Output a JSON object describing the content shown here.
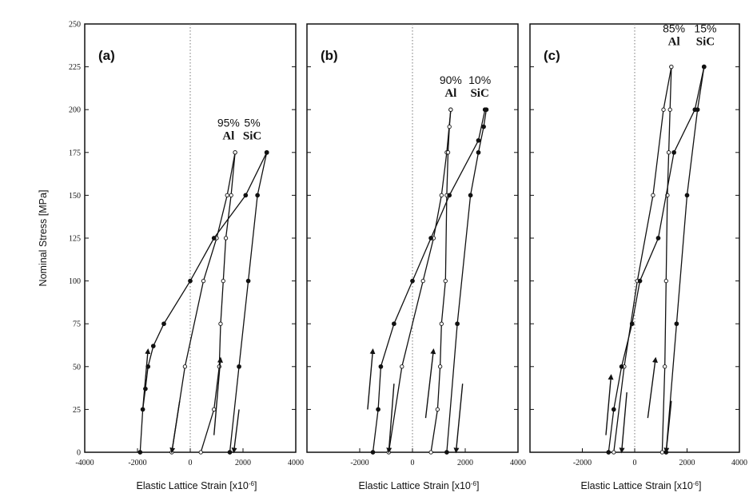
{
  "figure": {
    "y_axis_label": "Nominal Stress [MPa]",
    "x_axis_label": "Elastic Lattice Strain [x10",
    "x_axis_label_exp": "-6",
    "x_axis_label_end": "]"
  },
  "chart_data": [
    {
      "type": "line",
      "panel_label": "(a)",
      "xlabel": "Elastic Lattice Strain [x10-6]",
      "ylabel": "Nominal Stress [MPa]",
      "xlim": [
        -4000,
        4000
      ],
      "ylim": [
        0,
        250
      ],
      "xticks": [
        -4000,
        -2000,
        0,
        2000,
        4000
      ],
      "yticks": [
        0,
        25,
        50,
        75,
        100,
        125,
        150,
        175,
        200,
        225,
        250
      ],
      "vertical_reference_line_x": 0,
      "grid": false,
      "annotations": [
        {
          "label_top": "95%",
          "label_bottom": "Al",
          "x": 1450,
          "y": 190
        },
        {
          "label_top": "5%",
          "label_bottom": "SiC",
          "x": 2350,
          "y": 190
        }
      ],
      "series": [
        {
          "phase": "Al",
          "curve": "loading",
          "points": [
            [
              -700,
              0
            ],
            [
              -200,
              50
            ],
            [
              500,
              100
            ],
            [
              1000,
              125
            ],
            [
              1400,
              150
            ],
            [
              1700,
              175
            ]
          ]
        },
        {
          "phase": "Al",
          "curve": "unloading",
          "points": [
            [
              1700,
              175
            ],
            [
              1550,
              150
            ],
            [
              1350,
              125
            ],
            [
              1250,
              100
            ],
            [
              1150,
              75
            ],
            [
              1100,
              50
            ],
            [
              900,
              25
            ],
            [
              400,
              0
            ]
          ]
        },
        {
          "phase": "SiC",
          "curve": "loading",
          "points": [
            [
              -1900,
              0
            ],
            [
              -1800,
              25
            ],
            [
              -1700,
              37
            ],
            [
              -1600,
              50
            ],
            [
              -1400,
              62
            ],
            [
              -1000,
              75
            ],
            [
              0,
              100
            ],
            [
              900,
              125
            ],
            [
              2100,
              150
            ],
            [
              2900,
              175
            ]
          ]
        },
        {
          "phase": "SiC",
          "curve": "unloading",
          "points": [
            [
              2900,
              175
            ],
            [
              2550,
              150
            ],
            [
              2200,
              100
            ],
            [
              1850,
              50
            ],
            [
              1500,
              0
            ]
          ]
        }
      ],
      "arrows": [
        {
          "from": [
            -1800,
            25
          ],
          "to": [
            -1600,
            60
          ]
        },
        {
          "from": [
            -400,
            30
          ],
          "to": [
            -700,
            0
          ]
        },
        {
          "from": [
            900,
            10
          ],
          "to": [
            1150,
            55
          ]
        },
        {
          "from": [
            1850,
            25
          ],
          "to": [
            1650,
            0
          ]
        }
      ]
    },
    {
      "type": "line",
      "panel_label": "(b)",
      "xlabel": "Elastic Lattice Strain [x10-6]",
      "ylabel": "Nominal Stress [MPa]",
      "xlim": [
        -4000,
        4000
      ],
      "ylim": [
        0,
        250
      ],
      "xticks": [
        -4000,
        -2000,
        0,
        2000,
        4000
      ],
      "yticks": [
        0,
        25,
        50,
        75,
        100,
        125,
        150,
        175,
        200,
        225,
        250
      ],
      "vertical_reference_line_x": 0,
      "grid": false,
      "annotations": [
        {
          "label_top": "90%",
          "label_bottom": "Al",
          "x": 1450,
          "y": 215
        },
        {
          "label_top": "10%",
          "label_bottom": "SiC",
          "x": 2550,
          "y": 215
        }
      ],
      "series": [
        {
          "phase": "Al",
          "curve": "loading",
          "points": [
            [
              -900,
              0
            ],
            [
              -400,
              50
            ],
            [
              400,
              100
            ],
            [
              800,
              125
            ],
            [
              1100,
              150
            ],
            [
              1300,
              175
            ],
            [
              1450,
              200
            ]
          ]
        },
        {
          "phase": "Al",
          "curve": "unloading",
          "points": [
            [
              1450,
              200
            ],
            [
              1400,
              190
            ],
            [
              1350,
              175
            ],
            [
              1300,
              150
            ],
            [
              1250,
              100
            ],
            [
              1100,
              75
            ],
            [
              1050,
              50
            ],
            [
              950,
              25
            ],
            [
              700,
              0
            ]
          ]
        },
        {
          "phase": "SiC",
          "curve": "loading",
          "points": [
            [
              -1500,
              0
            ],
            [
              -1300,
              25
            ],
            [
              -1200,
              50
            ],
            [
              -700,
              75
            ],
            [
              0,
              100
            ],
            [
              700,
              125
            ],
            [
              1400,
              150
            ],
            [
              2500,
              182
            ],
            [
              2750,
              200
            ]
          ]
        },
        {
          "phase": "SiC",
          "curve": "unloading",
          "points": [
            [
              2800,
              200
            ],
            [
              2700,
              190
            ],
            [
              2500,
              175
            ],
            [
              2200,
              150
            ],
            [
              1700,
              75
            ],
            [
              1300,
              0
            ]
          ]
        }
      ],
      "arrows": [
        {
          "from": [
            -1700,
            25
          ],
          "to": [
            -1500,
            60
          ]
        },
        {
          "from": [
            -700,
            40
          ],
          "to": [
            -900,
            0
          ]
        },
        {
          "from": [
            500,
            20
          ],
          "to": [
            800,
            60
          ]
        },
        {
          "from": [
            1900,
            40
          ],
          "to": [
            1650,
            0
          ]
        }
      ]
    },
    {
      "type": "line",
      "panel_label": "(c)",
      "xlabel": "Elastic Lattice Strain [x10-6]",
      "ylabel": "Nominal Stress [MPa]",
      "xlim": [
        -4000,
        4000
      ],
      "ylim": [
        0,
        250
      ],
      "xticks": [
        -4000,
        -2000,
        0,
        2000,
        4000
      ],
      "yticks": [
        0,
        25,
        50,
        75,
        100,
        125,
        150,
        175,
        200,
        225,
        250
      ],
      "vertical_reference_line_x": 0,
      "grid": false,
      "annotations": [
        {
          "label_top": "85%",
          "label_bottom": "Al",
          "x": 1500,
          "y": 245
        },
        {
          "label_top": "15%",
          "label_bottom": "SiC",
          "x": 2700,
          "y": 245
        }
      ],
      "series": [
        {
          "phase": "Al",
          "curve": "loading",
          "points": [
            [
              -800,
              0
            ],
            [
              -400,
              50
            ],
            [
              100,
              100
            ],
            [
              700,
              150
            ],
            [
              1100,
              200
            ],
            [
              1400,
              225
            ]
          ]
        },
        {
          "phase": "Al",
          "curve": "unloading",
          "points": [
            [
              1400,
              225
            ],
            [
              1350,
              200
            ],
            [
              1300,
              175
            ],
            [
              1250,
              150
            ],
            [
              1200,
              100
            ],
            [
              1150,
              50
            ],
            [
              1050,
              0
            ]
          ]
        },
        {
          "phase": "SiC",
          "curve": "loading",
          "points": [
            [
              -1000,
              0
            ],
            [
              -800,
              25
            ],
            [
              -500,
              50
            ],
            [
              -100,
              75
            ],
            [
              200,
              100
            ],
            [
              900,
              125
            ],
            [
              1500,
              175
            ],
            [
              2300,
              200
            ],
            [
              2650,
              225
            ]
          ]
        },
        {
          "phase": "SiC",
          "curve": "unloading",
          "points": [
            [
              2650,
              225
            ],
            [
              2400,
              200
            ],
            [
              2000,
              150
            ],
            [
              1600,
              75
            ],
            [
              1200,
              0
            ]
          ]
        }
      ],
      "arrows": [
        {
          "from": [
            -1100,
            10
          ],
          "to": [
            -900,
            45
          ]
        },
        {
          "from": [
            -300,
            35
          ],
          "to": [
            -500,
            0
          ]
        },
        {
          "from": [
            500,
            20
          ],
          "to": [
            800,
            55
          ]
        },
        {
          "from": [
            1400,
            30
          ],
          "to": [
            1200,
            0
          ]
        }
      ]
    }
  ]
}
